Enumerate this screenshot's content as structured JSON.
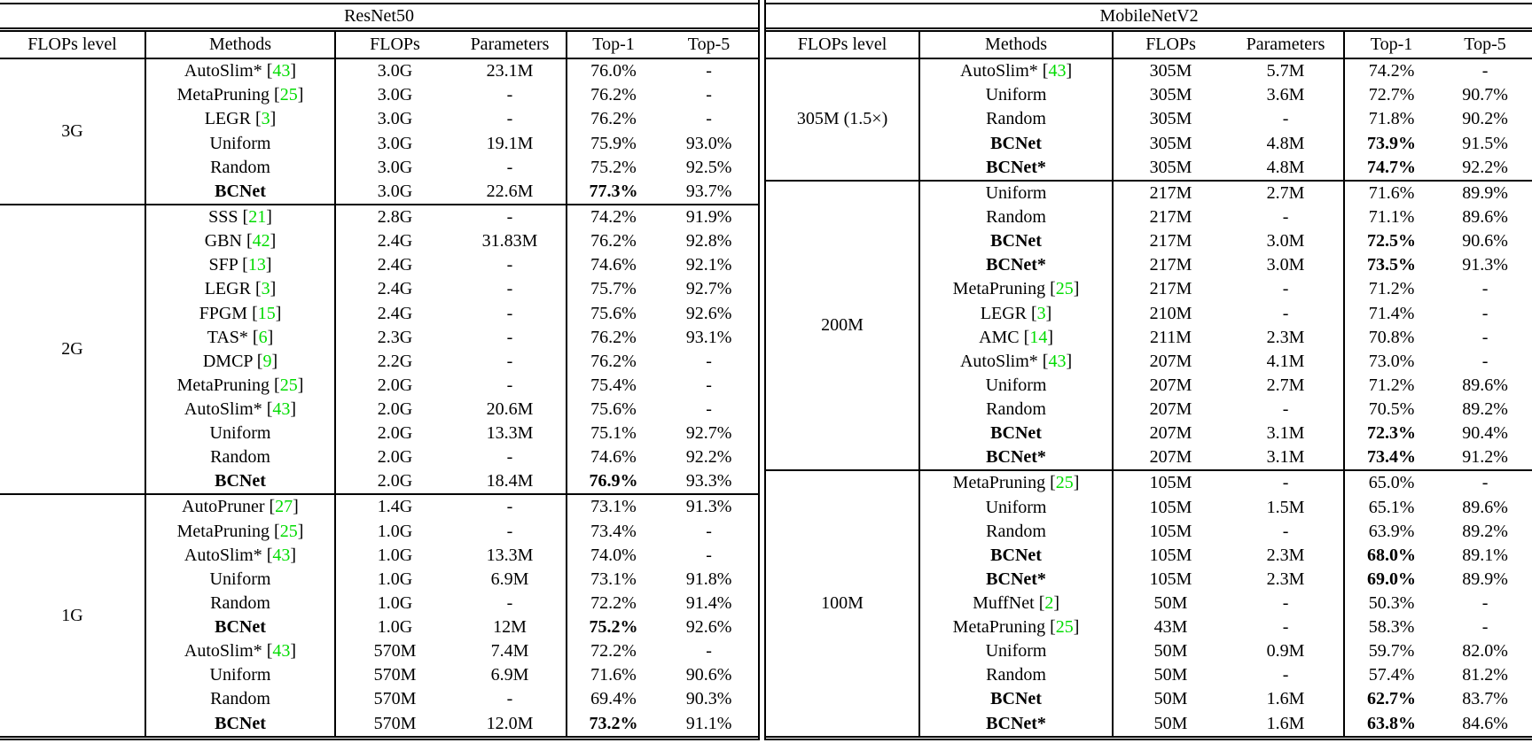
{
  "citation_color": "#00DC00",
  "tables": [
    {
      "title": "ResNet50",
      "headers": [
        "FLOPs level",
        "Methods",
        "FLOPs",
        "Parameters",
        "Top-1",
        "Top-5"
      ],
      "groups": [
        {
          "level": "3G",
          "rows": [
            {
              "method": "AutoSlim*",
              "cite": "43",
              "flops": "3.0G",
              "params": "23.1M",
              "top1": "76.0%",
              "top5": "-",
              "bold": false
            },
            {
              "method": "MetaPruning",
              "cite": "25",
              "flops": "3.0G",
              "params": "-",
              "top1": "76.2%",
              "top5": "-",
              "bold": false
            },
            {
              "method": "LEGR",
              "cite": "3",
              "flops": "3.0G",
              "params": "-",
              "top1": "76.2%",
              "top5": "-",
              "bold": false
            },
            {
              "method": "Uniform",
              "cite": "",
              "flops": "3.0G",
              "params": "19.1M",
              "top1": "75.9%",
              "top5": "93.0%",
              "bold": false
            },
            {
              "method": "Random",
              "cite": "",
              "flops": "3.0G",
              "params": "-",
              "top1": "75.2%",
              "top5": "92.5%",
              "bold": false
            },
            {
              "method": "BCNet",
              "cite": "",
              "flops": "3.0G",
              "params": "22.6M",
              "top1": "77.3%",
              "top5": "93.7%",
              "bold": true
            }
          ]
        },
        {
          "level": "2G",
          "rows": [
            {
              "method": "SSS",
              "cite": "21",
              "flops": "2.8G",
              "params": "-",
              "top1": "74.2%",
              "top5": "91.9%",
              "bold": false
            },
            {
              "method": "GBN",
              "cite": "42",
              "flops": "2.4G",
              "params": "31.83M",
              "top1": "76.2%",
              "top5": "92.8%",
              "bold": false
            },
            {
              "method": "SFP",
              "cite": "13",
              "flops": "2.4G",
              "params": "-",
              "top1": "74.6%",
              "top5": "92.1%",
              "bold": false
            },
            {
              "method": "LEGR",
              "cite": "3",
              "flops": "2.4G",
              "params": "-",
              "top1": "75.7%",
              "top5": "92.7%",
              "bold": false
            },
            {
              "method": "FPGM",
              "cite": "15",
              "flops": "2.4G",
              "params": "-",
              "top1": "75.6%",
              "top5": "92.6%",
              "bold": false
            },
            {
              "method": "TAS*",
              "cite": "6",
              "flops": "2.3G",
              "params": "-",
              "top1": "76.2%",
              "top5": "93.1%",
              "bold": false
            },
            {
              "method": "DMCP",
              "cite": "9",
              "flops": "2.2G",
              "params": "-",
              "top1": "76.2%",
              "top5": "-",
              "bold": false
            },
            {
              "method": "MetaPruning",
              "cite": "25",
              "flops": "2.0G",
              "params": "-",
              "top1": "75.4%",
              "top5": "-",
              "bold": false
            },
            {
              "method": "AutoSlim*",
              "cite": "43",
              "flops": "2.0G",
              "params": "20.6M",
              "top1": "75.6%",
              "top5": "-",
              "bold": false
            },
            {
              "method": "Uniform",
              "cite": "",
              "flops": "2.0G",
              "params": "13.3M",
              "top1": "75.1%",
              "top5": "92.7%",
              "bold": false
            },
            {
              "method": "Random",
              "cite": "",
              "flops": "2.0G",
              "params": "-",
              "top1": "74.6%",
              "top5": "92.2%",
              "bold": false
            },
            {
              "method": "BCNet",
              "cite": "",
              "flops": "2.0G",
              "params": "18.4M",
              "top1": "76.9%",
              "top5": "93.3%",
              "bold": true
            }
          ]
        },
        {
          "level": "1G",
          "rows": [
            {
              "method": "AutoPruner",
              "cite": "27",
              "flops": "1.4G",
              "params": "-",
              "top1": "73.1%",
              "top5": "91.3%",
              "bold": false
            },
            {
              "method": "MetaPruning",
              "cite": "25",
              "flops": "1.0G",
              "params": "-",
              "top1": "73.4%",
              "top5": "-",
              "bold": false
            },
            {
              "method": "AutoSlim*",
              "cite": "43",
              "flops": "1.0G",
              "params": "13.3M",
              "top1": "74.0%",
              "top5": "-",
              "bold": false
            },
            {
              "method": "Uniform",
              "cite": "",
              "flops": "1.0G",
              "params": "6.9M",
              "top1": "73.1%",
              "top5": "91.8%",
              "bold": false
            },
            {
              "method": "Random",
              "cite": "",
              "flops": "1.0G",
              "params": "-",
              "top1": "72.2%",
              "top5": "91.4%",
              "bold": false
            },
            {
              "method": "BCNet",
              "cite": "",
              "flops": "1.0G",
              "params": "12M",
              "top1": "75.2%",
              "top5": "92.6%",
              "bold": true
            },
            {
              "method": "AutoSlim*",
              "cite": "43",
              "flops": "570M",
              "params": "7.4M",
              "top1": "72.2%",
              "top5": "-",
              "bold": false
            },
            {
              "method": "Uniform",
              "cite": "",
              "flops": "570M",
              "params": "6.9M",
              "top1": "71.6%",
              "top5": "90.6%",
              "bold": false
            },
            {
              "method": "Random",
              "cite": "",
              "flops": "570M",
              "params": "-",
              "top1": "69.4%",
              "top5": "90.3%",
              "bold": false
            },
            {
              "method": "BCNet",
              "cite": "",
              "flops": "570M",
              "params": "12.0M",
              "top1": "73.2%",
              "top5": "91.1%",
              "bold": true
            }
          ]
        }
      ]
    },
    {
      "title": "MobileNetV2",
      "headers": [
        "FLOPs level",
        "Methods",
        "FLOPs",
        "Parameters",
        "Top-1",
        "Top-5"
      ],
      "groups": [
        {
          "level": "305M (1.5×)",
          "rows": [
            {
              "method": "AutoSlim*",
              "cite": "43",
              "flops": "305M",
              "params": "5.7M",
              "top1": "74.2%",
              "top5": "-",
              "bold": false
            },
            {
              "method": "Uniform",
              "cite": "",
              "flops": "305M",
              "params": "3.6M",
              "top1": "72.7%",
              "top5": "90.7%",
              "bold": false
            },
            {
              "method": "Random",
              "cite": "",
              "flops": "305M",
              "params": "-",
              "top1": "71.8%",
              "top5": "90.2%",
              "bold": false
            },
            {
              "method": "BCNet",
              "cite": "",
              "flops": "305M",
              "params": "4.8M",
              "top1": "73.9%",
              "top5": "91.5%",
              "bold": true
            },
            {
              "method": "BCNet*",
              "cite": "",
              "flops": "305M",
              "params": "4.8M",
              "top1": "74.7%",
              "top5": "92.2%",
              "bold": true
            }
          ]
        },
        {
          "level": "200M",
          "rows": [
            {
              "method": "Uniform",
              "cite": "",
              "flops": "217M",
              "params": "2.7M",
              "top1": "71.6%",
              "top5": "89.9%",
              "bold": false
            },
            {
              "method": "Random",
              "cite": "",
              "flops": "217M",
              "params": "-",
              "top1": "71.1%",
              "top5": "89.6%",
              "bold": false
            },
            {
              "method": "BCNet",
              "cite": "",
              "flops": "217M",
              "params": "3.0M",
              "top1": "72.5%",
              "top5": "90.6%",
              "bold": true
            },
            {
              "method": "BCNet*",
              "cite": "",
              "flops": "217M",
              "params": "3.0M",
              "top1": "73.5%",
              "top5": "91.3%",
              "bold": true
            },
            {
              "method": "MetaPruning",
              "cite": "25",
              "flops": "217M",
              "params": "-",
              "top1": "71.2%",
              "top5": "-",
              "bold": false
            },
            {
              "method": "LEGR",
              "cite": "3",
              "flops": "210M",
              "params": "-",
              "top1": "71.4%",
              "top5": "-",
              "bold": false
            },
            {
              "method": "AMC",
              "cite": "14",
              "flops": "211M",
              "params": "2.3M",
              "top1": "70.8%",
              "top5": "-",
              "bold": false
            },
            {
              "method": "AutoSlim*",
              "cite": "43",
              "flops": "207M",
              "params": "4.1M",
              "top1": "73.0%",
              "top5": "-",
              "bold": false
            },
            {
              "method": "Uniform",
              "cite": "",
              "flops": "207M",
              "params": "2.7M",
              "top1": "71.2%",
              "top5": "89.6%",
              "bold": false
            },
            {
              "method": "Random",
              "cite": "",
              "flops": "207M",
              "params": "-",
              "top1": "70.5%",
              "top5": "89.2%",
              "bold": false
            },
            {
              "method": "BCNet",
              "cite": "",
              "flops": "207M",
              "params": "3.1M",
              "top1": "72.3%",
              "top5": "90.4%",
              "bold": true
            },
            {
              "method": "BCNet*",
              "cite": "",
              "flops": "207M",
              "params": "3.1M",
              "top1": "73.4%",
              "top5": "91.2%",
              "bold": true
            }
          ]
        },
        {
          "level": "100M",
          "rows": [
            {
              "method": "MetaPruning",
              "cite": "25",
              "flops": "105M",
              "params": "-",
              "top1": "65.0%",
              "top5": "-",
              "bold": false
            },
            {
              "method": "Uniform",
              "cite": "",
              "flops": "105M",
              "params": "1.5M",
              "top1": "65.1%",
              "top5": "89.6%",
              "bold": false
            },
            {
              "method": "Random",
              "cite": "",
              "flops": "105M",
              "params": "-",
              "top1": "63.9%",
              "top5": "89.2%",
              "bold": false
            },
            {
              "method": "BCNet",
              "cite": "",
              "flops": "105M",
              "params": "2.3M",
              "top1": "68.0%",
              "top5": "89.1%",
              "bold": true
            },
            {
              "method": "BCNet*",
              "cite": "",
              "flops": "105M",
              "params": "2.3M",
              "top1": "69.0%",
              "top5": "89.9%",
              "bold": true
            },
            {
              "method": "MuffNet",
              "cite": "2",
              "flops": "50M",
              "params": "-",
              "top1": "50.3%",
              "top5": "-",
              "bold": false
            },
            {
              "method": "MetaPruning",
              "cite": "25",
              "flops": "43M",
              "params": "-",
              "top1": "58.3%",
              "top5": "-",
              "bold": false
            },
            {
              "method": "Uniform",
              "cite": "",
              "flops": "50M",
              "params": "0.9M",
              "top1": "59.7%",
              "top5": "82.0%",
              "bold": false
            },
            {
              "method": "Random",
              "cite": "",
              "flops": "50M",
              "params": "-",
              "top1": "57.4%",
              "top5": "81.2%",
              "bold": false
            },
            {
              "method": "BCNet",
              "cite": "",
              "flops": "50M",
              "params": "1.6M",
              "top1": "62.7%",
              "top5": "83.7%",
              "bold": true
            },
            {
              "method": "BCNet*",
              "cite": "",
              "flops": "50M",
              "params": "1.6M",
              "top1": "63.8%",
              "top5": "84.6%",
              "bold": true
            }
          ]
        }
      ]
    }
  ]
}
